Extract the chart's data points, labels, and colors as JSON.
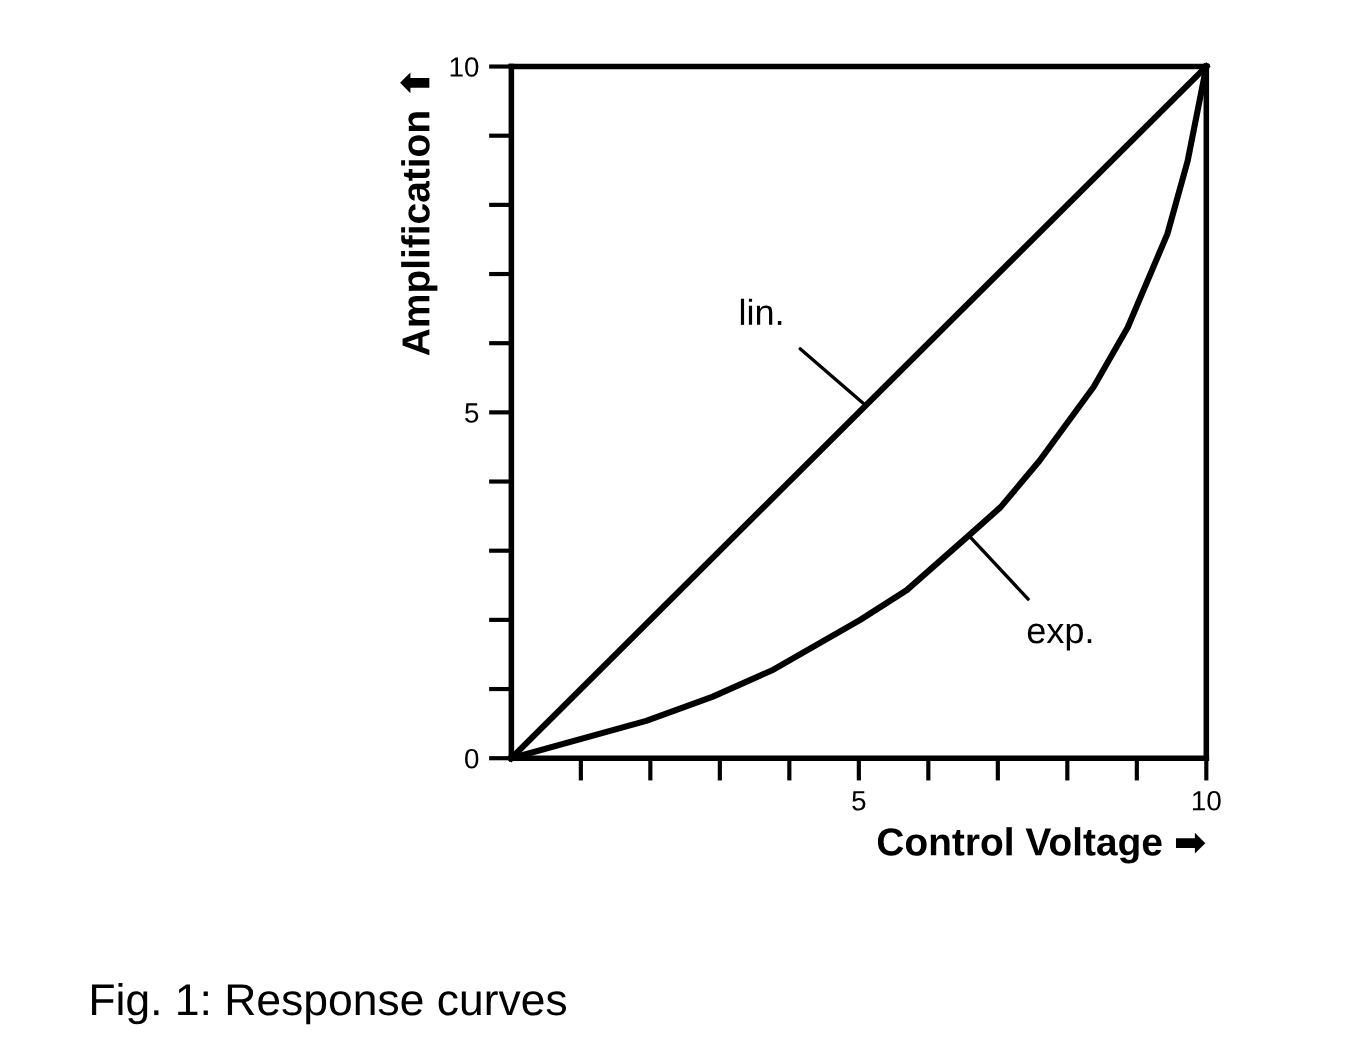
{
  "chart_data": {
    "type": "line",
    "xlabel": "Control Voltage ➡",
    "ylabel": "Amplification ⬆",
    "xlim": [
      0,
      10
    ],
    "ylim": [
      0,
      10
    ],
    "xticks": [
      {
        "value": 1,
        "label": null
      },
      {
        "value": 2,
        "label": null
      },
      {
        "value": 3,
        "label": null
      },
      {
        "value": 4,
        "label": null
      },
      5,
      {
        "value": 6,
        "label": null
      },
      {
        "value": 7,
        "label": null
      },
      {
        "value": 8,
        "label": null
      },
      {
        "value": 9,
        "label": null
      },
      10
    ],
    "yticks": [
      0,
      {
        "value": 1,
        "label": null
      },
      {
        "value": 2,
        "label": null
      },
      {
        "value": 3,
        "label": null
      },
      {
        "value": 4,
        "label": null
      },
      5,
      {
        "value": 6,
        "label": null
      },
      {
        "value": 7,
        "label": null
      },
      {
        "value": 8,
        "label": null
      },
      {
        "value": 9,
        "label": null
      },
      10
    ],
    "grid": false,
    "legend": false,
    "marker": "none",
    "line_style": "solid",
    "series": [
      {
        "color": "#000000",
        "x": [
          0,
          10
        ],
        "values": [
          0,
          10
        ]
      },
      {
        "color": "#000000",
        "x": [
          0,
          1.94,
          2.9,
          3.77,
          5.02,
          5.69,
          6.56,
          7.04,
          7.6,
          8.38,
          8.87,
          9.44,
          9.73,
          10
        ],
        "values": [
          0,
          0.54,
          0.89,
          1.28,
          2.0,
          2.43,
          3.2,
          3.63,
          4.3,
          5.37,
          6.23,
          7.58,
          8.63,
          10
        ]
      }
    ],
    "annotations": [
      {
        "text": "lin.",
        "x": 5.1,
        "y": 5.1
      },
      {
        "text": "exp.",
        "x": 6.6,
        "y": 3.2
      },
      "Fig. 1: Response curves"
    ]
  }
}
